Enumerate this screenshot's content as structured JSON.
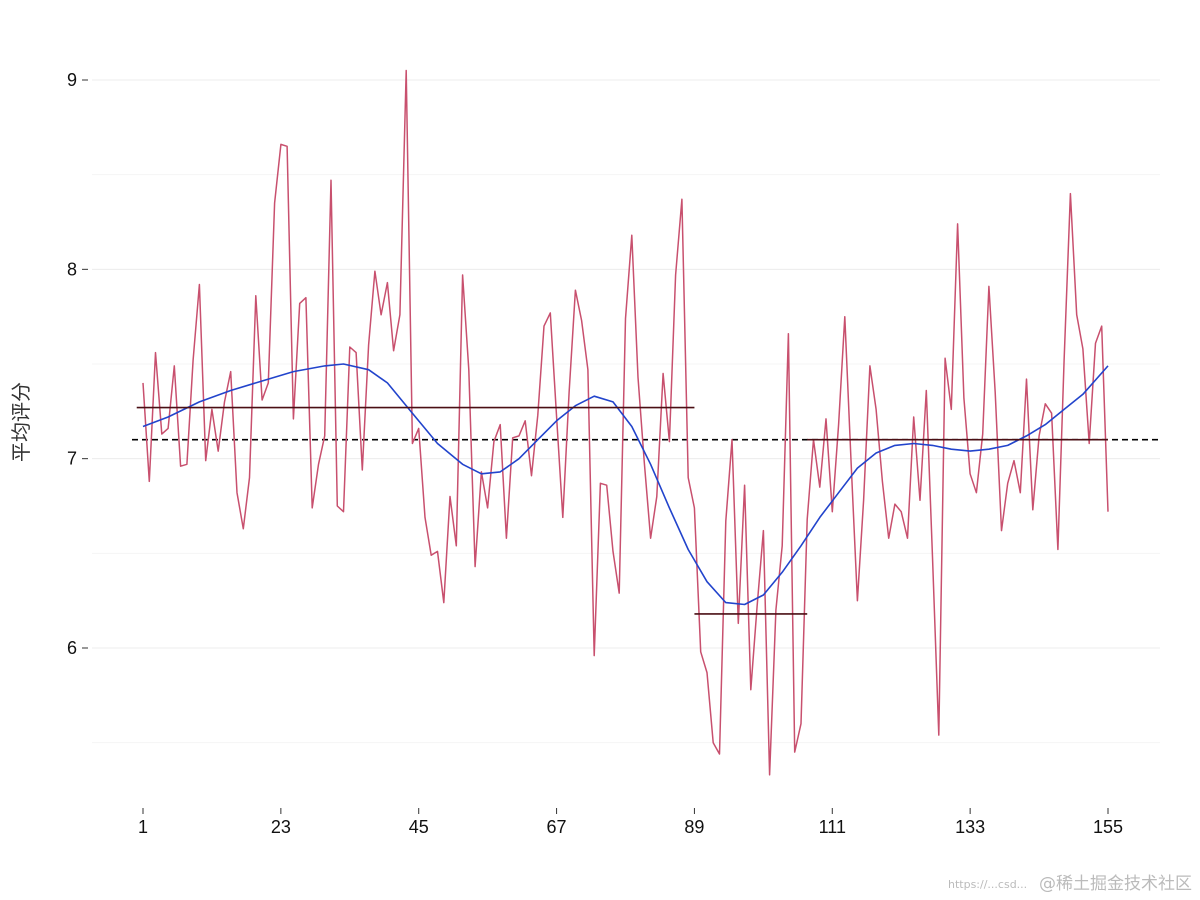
{
  "chart_data": {
    "type": "line",
    "title": "",
    "xlabel": "",
    "ylabel": "平均评分",
    "xlim": [
      1,
      155
    ],
    "ylim": [
      5.2,
      9.1
    ],
    "x_ticks": [
      1,
      23,
      45,
      67,
      89,
      111,
      133,
      155
    ],
    "y_ticks": [
      6,
      7,
      8,
      9
    ],
    "grid": "horizontal",
    "legend": "none",
    "series": [
      {
        "kind": "raw",
        "color": "#c8506e",
        "x": [
          1,
          2,
          3,
          4,
          5,
          6,
          7,
          8,
          9,
          10,
          11,
          12,
          13,
          14,
          15,
          16,
          17,
          18,
          19,
          20,
          21,
          22,
          23,
          24,
          25,
          26,
          27,
          28,
          29,
          30,
          31,
          32,
          33,
          34,
          35,
          36,
          37,
          38,
          39,
          40,
          41,
          42,
          43,
          44,
          45,
          46,
          47,
          48,
          49,
          50,
          51,
          52,
          53,
          54,
          55,
          56,
          57,
          58,
          59,
          60,
          61,
          62,
          63,
          64,
          65,
          66,
          67,
          68,
          69,
          70,
          71,
          72,
          73,
          74,
          75,
          76,
          77,
          78,
          79,
          80,
          81,
          82,
          83,
          84,
          85,
          86,
          87,
          88,
          89,
          90,
          91,
          92,
          93,
          94,
          95,
          96,
          97,
          98,
          99,
          100,
          101,
          102,
          103,
          104,
          105,
          106,
          107,
          108,
          109,
          110,
          111,
          112,
          113,
          114,
          115,
          116,
          117,
          118,
          119,
          120,
          121,
          122,
          123,
          124,
          125,
          126,
          127,
          128,
          129,
          130,
          131,
          132,
          133,
          134,
          135,
          136,
          137,
          138,
          139,
          140,
          141,
          142,
          143,
          144,
          145,
          146,
          147,
          148,
          149,
          150,
          151,
          152,
          153,
          154,
          155
        ],
        "y": [
          7.4,
          6.88,
          7.56,
          7.13,
          7.16,
          7.49,
          6.96,
          6.97,
          7.52,
          7.92,
          6.99,
          7.26,
          7.04,
          7.3,
          7.46,
          6.82,
          6.63,
          6.9,
          7.86,
          7.31,
          7.4,
          8.35,
          8.66,
          8.65,
          7.21,
          7.82,
          7.85,
          6.74,
          6.97,
          7.12,
          8.47,
          6.75,
          6.72,
          7.59,
          7.56,
          6.94,
          7.6,
          7.99,
          7.76,
          7.93,
          7.57,
          7.76,
          9.05,
          7.08,
          7.16,
          6.69,
          6.49,
          6.51,
          6.24,
          6.8,
          6.54,
          7.97,
          7.47,
          6.43,
          6.93,
          6.74,
          7.09,
          7.18,
          6.58,
          7.11,
          7.12,
          7.2,
          6.91,
          7.23,
          7.7,
          7.77,
          7.22,
          6.69,
          7.35,
          7.89,
          7.73,
          7.47,
          5.96,
          6.87,
          6.86,
          6.51,
          6.29,
          7.74,
          8.18,
          7.43,
          6.98,
          6.58,
          6.8,
          7.45,
          7.09,
          7.97,
          8.37,
          6.9,
          6.74,
          5.98,
          5.87,
          5.5,
          5.44,
          6.67,
          7.1,
          6.13,
          6.86,
          5.78,
          6.22,
          6.62,
          5.33,
          6.2,
          6.54,
          7.66,
          5.45,
          5.6,
          6.68,
          7.1,
          6.85,
          7.21,
          6.72,
          7.18,
          7.75,
          6.98,
          6.25,
          6.78,
          7.49,
          7.26,
          6.88,
          6.58,
          6.76,
          6.72,
          6.58,
          7.22,
          6.78,
          7.36,
          6.48,
          5.54,
          7.53,
          7.26,
          8.24,
          7.32,
          6.92,
          6.82,
          7.13,
          7.91,
          7.35,
          6.62,
          6.87,
          6.99,
          6.82,
          7.42,
          6.73,
          7.12,
          7.29,
          7.24,
          6.52,
          7.52,
          8.4,
          7.76,
          7.58,
          7.08,
          7.61,
          7.7,
          6.72
        ]
      },
      {
        "kind": "smooth",
        "color": "#2244cc",
        "x": [
          1,
          5,
          10,
          15,
          20,
          25,
          30,
          33,
          37,
          40,
          44,
          48,
          52,
          55,
          58,
          61,
          64,
          67,
          70,
          73,
          76,
          79,
          82,
          85,
          88,
          91,
          94,
          97,
          100,
          103,
          106,
          109,
          112,
          115,
          118,
          121,
          124,
          127,
          130,
          133,
          136,
          139,
          142,
          145,
          148,
          151,
          155
        ],
        "y": [
          7.17,
          7.22,
          7.3,
          7.36,
          7.41,
          7.46,
          7.49,
          7.5,
          7.47,
          7.4,
          7.24,
          7.08,
          6.97,
          6.92,
          6.93,
          7.0,
          7.1,
          7.2,
          7.28,
          7.33,
          7.3,
          7.17,
          6.97,
          6.74,
          6.52,
          6.35,
          6.24,
          6.23,
          6.28,
          6.4,
          6.54,
          6.69,
          6.82,
          6.95,
          7.03,
          7.07,
          7.08,
          7.07,
          7.05,
          7.04,
          7.05,
          7.07,
          7.12,
          7.18,
          7.26,
          7.34,
          7.49
        ]
      }
    ],
    "segments": [
      {
        "x_start": 0,
        "x_end": 89,
        "y": 7.27,
        "color": "#4a0f14"
      },
      {
        "x_start": 89,
        "x_end": 107,
        "y": 6.18,
        "color": "#4a0f14"
      },
      {
        "x_start": 107,
        "x_end": 155,
        "y": 7.1,
        "color": "#4a0f14"
      }
    ],
    "reference_lines": [
      {
        "y": 7.1,
        "style": "dashed",
        "color": "#000000"
      }
    ]
  },
  "watermark": {
    "text": "@稀土掘金技术社区",
    "url_text": "https://...csd..."
  }
}
